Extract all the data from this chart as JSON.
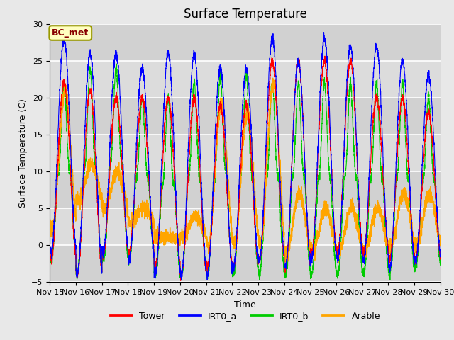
{
  "title": "Surface Temperature",
  "ylabel": "Surface Temperature (C)",
  "xlabel": "Time",
  "ylim": [
    -5,
    30
  ],
  "annotation_text": "BC_met",
  "annotation_facecolor": "#FFFFC0",
  "annotation_edgecolor": "#999900",
  "annotation_textcolor": "#880000",
  "background_color": "#E8E8E8",
  "plot_bg_color": "#DCDCDC",
  "grid_color": "#FFFFFF",
  "legend_entries": [
    "Tower",
    "IRT0_a",
    "IRT0_b",
    "Arable"
  ],
  "line_colors": [
    "#FF0000",
    "#0000FF",
    "#00CC00",
    "#FFA500"
  ],
  "n_days": 15,
  "points_per_day": 288,
  "tick_labels": [
    "Nov 15",
    "Nov 16",
    "Nov 17",
    "Nov 18",
    "Nov 19",
    "Nov 20",
    "Nov 21",
    "Nov 22",
    "Nov 23",
    "Nov 24",
    "Nov 25",
    "Nov 26",
    "Nov 27",
    "Nov 28",
    "Nov 29",
    "Nov 30"
  ],
  "tower_peaks": [
    22,
    21,
    20,
    20,
    20,
    20,
    19,
    19,
    25,
    25,
    25,
    25,
    20,
    20,
    18
  ],
  "tower_mins": [
    -2,
    -4,
    -1,
    -1,
    -3,
    -4,
    -3,
    -3,
    -2,
    -3,
    -1,
    -1,
    -1,
    -2,
    -2
  ],
  "irta_peaks": [
    28,
    26,
    26,
    24,
    26,
    26,
    24,
    24,
    28,
    25,
    28,
    27,
    27,
    25,
    23
  ],
  "irta_mins": [
    -1,
    -4,
    -1,
    -2,
    -4,
    -4,
    -4,
    -3,
    -2,
    -3,
    -2,
    -2,
    -2,
    -3,
    -2
  ],
  "irtb_peaks": [
    22,
    24,
    24,
    20,
    20,
    22,
    23,
    23,
    22,
    22,
    22,
    22,
    22,
    22,
    20
  ],
  "irtb_mins": [
    -2,
    -4,
    -2,
    -2,
    -4,
    -4,
    -4,
    -4,
    -4,
    -4,
    -4,
    -4,
    -4,
    -4,
    -3
  ],
  "arable_peaks": [
    21,
    11,
    10,
    5,
    1,
    4,
    19,
    18,
    22,
    7,
    5,
    5,
    5,
    7,
    7
  ],
  "arable_mins": [
    2,
    6,
    5,
    3,
    1,
    1,
    0,
    0,
    0,
    -1,
    -1,
    -1,
    -1,
    0,
    0
  ],
  "peak_hour": 13,
  "min_hour": 4
}
